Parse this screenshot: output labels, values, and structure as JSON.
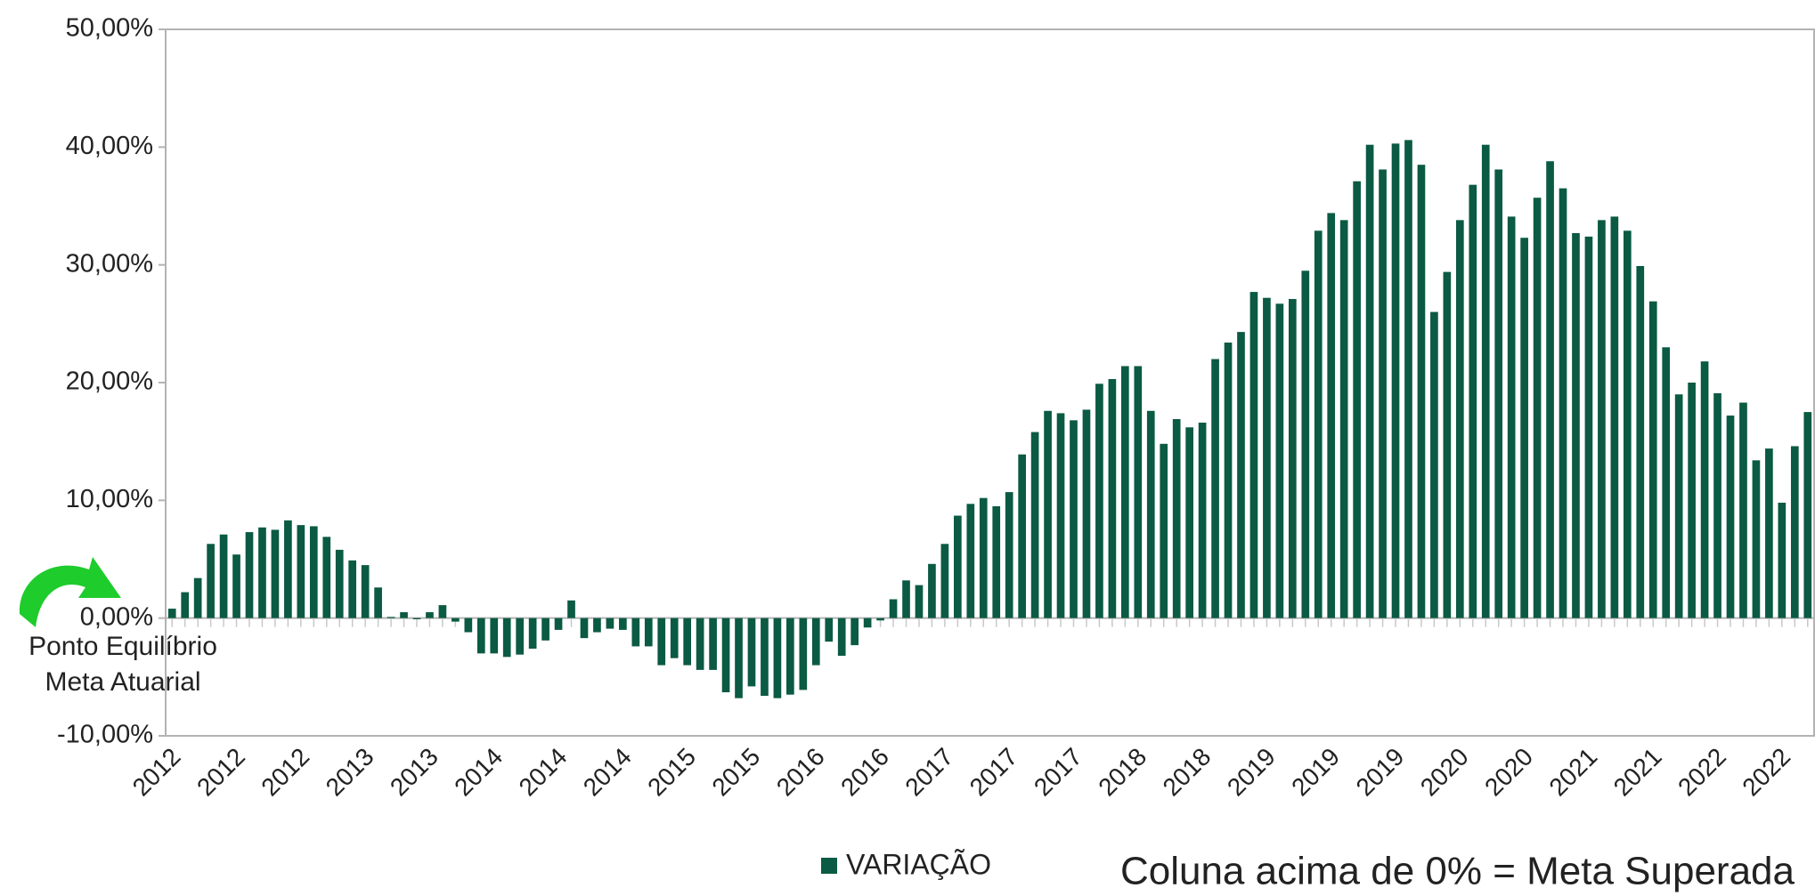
{
  "chart_data": {
    "type": "bar",
    "categories": [
      "2012",
      null,
      null,
      null,
      null,
      "2012",
      null,
      null,
      null,
      null,
      "2012",
      null,
      null,
      null,
      null,
      "2013",
      null,
      null,
      null,
      null,
      "2013",
      null,
      null,
      null,
      null,
      "2014",
      null,
      null,
      null,
      null,
      "2014",
      null,
      null,
      null,
      null,
      "2014",
      null,
      null,
      null,
      null,
      "2015",
      null,
      null,
      null,
      null,
      "2015",
      null,
      null,
      null,
      null,
      "2016",
      null,
      null,
      null,
      null,
      "2016",
      null,
      null,
      null,
      null,
      "2017",
      null,
      null,
      null,
      null,
      "2017",
      null,
      null,
      null,
      null,
      "2017",
      null,
      null,
      null,
      null,
      "2018",
      null,
      null,
      null,
      null,
      "2018",
      null,
      null,
      null,
      null,
      "2019",
      null,
      null,
      null,
      null,
      "2019",
      null,
      null,
      null,
      null,
      "2019",
      null,
      null,
      null,
      null,
      "2020",
      null,
      null,
      null,
      null,
      "2020",
      null,
      null,
      null,
      null,
      "2021",
      null,
      null,
      null,
      null,
      "2021",
      null,
      null,
      null,
      null,
      "2022",
      null,
      null,
      null,
      null,
      "2022",
      null,
      null
    ],
    "series": [
      {
        "name": "VARIAÇÃO",
        "color": "#0b5a43",
        "values": [
          0.8,
          2.2,
          3.4,
          6.3,
          7.1,
          5.4,
          7.3,
          7.7,
          7.5,
          8.3,
          7.9,
          7.8,
          6.9,
          5.8,
          4.9,
          4.5,
          2.6,
          0.1,
          0.5,
          -0.1,
          0.5,
          1.1,
          -0.3,
          -1.2,
          -3.0,
          -3.0,
          -3.3,
          -3.1,
          -2.6,
          -1.9,
          -1.0,
          1.5,
          -1.7,
          -1.2,
          -0.9,
          -1.0,
          -2.4,
          -2.4,
          -4.0,
          -3.4,
          -4.0,
          -4.4,
          -4.4,
          -6.3,
          -6.8,
          -5.8,
          -6.6,
          -6.8,
          -6.5,
          -6.1,
          -4.0,
          -2.0,
          -3.2,
          -2.3,
          -0.8,
          -0.2,
          1.6,
          3.2,
          2.8,
          4.6,
          6.3,
          8.7,
          9.7,
          10.2,
          9.5,
          10.7,
          13.9,
          15.8,
          17.6,
          17.4,
          16.8,
          17.7,
          19.9,
          20.3,
          21.4,
          21.4,
          17.6,
          14.8,
          16.9,
          16.2,
          16.6,
          22.0,
          23.4,
          24.3,
          27.7,
          27.2,
          26.7,
          27.1,
          29.5,
          32.9,
          34.4,
          33.8,
          37.1,
          40.2,
          38.1,
          40.3,
          40.6,
          38.5,
          26.0,
          29.4,
          33.8,
          36.8,
          40.2,
          38.1,
          34.1,
          32.3,
          35.7,
          38.8,
          36.5,
          32.7,
          32.4,
          33.8,
          34.1,
          32.9,
          29.9,
          26.9,
          23.0,
          19.0,
          20.0,
          21.8,
          19.1,
          17.2,
          18.3,
          13.4,
          14.4,
          9.8,
          14.6,
          17.5
        ]
      }
    ],
    "ylim": [
      -10,
      50
    ],
    "yticks": [
      {
        "value": -10,
        "label": "-10,00%"
      },
      {
        "value": 0,
        "label": "0,00%"
      },
      {
        "value": 10,
        "label": "10,00%"
      },
      {
        "value": 20,
        "label": "20,00%"
      },
      {
        "value": 30,
        "label": "30,00%"
      },
      {
        "value": 40,
        "label": "40,00%"
      },
      {
        "value": 50,
        "label": "50,00%"
      }
    ],
    "annotations": [
      "Ponto Equilíbrio",
      "Meta Atuarial",
      "Coluna acima de 0% = Meta Superada"
    ],
    "legend": "bottom"
  }
}
